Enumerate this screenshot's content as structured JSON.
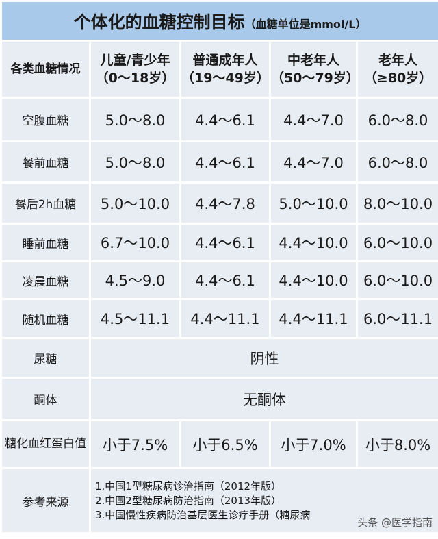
{
  "title": {
    "main": "个体化的血糖控制目标",
    "sub": "（血糖单位是mmol/L）"
  },
  "header": {
    "first": "各类血糖情况",
    "columns": [
      {
        "name": "儿童/青少年",
        "age": "（0～18岁）"
      },
      {
        "name": "普通成年人",
        "age": "（19～49岁）"
      },
      {
        "name": "中老年人",
        "age": "（50～79岁）"
      },
      {
        "name": "老年人",
        "age": "（≥80岁）"
      }
    ]
  },
  "rows": [
    {
      "label": "空腹血糖",
      "values": [
        "5.0～8.0",
        "4.4～6.1",
        "4.4～7.0",
        "6.0～8.0"
      ]
    },
    {
      "label": "餐前血糖",
      "values": [
        "5.0～8.0",
        "4.4～6.1",
        "4.4～7.0",
        "6.0～8.0"
      ]
    },
    {
      "label": "餐后2h血糖",
      "values": [
        "5.0～10.0",
        "4.4～7.8",
        "5.0～10.0",
        "8.0～10.0"
      ]
    },
    {
      "label": "睡前血糖",
      "values": [
        "6.7～10.0",
        "4.4～6.1",
        "4.4～10.0",
        "6.0～10.0"
      ]
    },
    {
      "label": "凌晨血糖",
      "values": [
        "4.5～9.0",
        "4.4～6.1",
        "4.4～10.0",
        "6.0～10.0"
      ]
    },
    {
      "label": "随机血糖",
      "values": [
        "4.5～11.1",
        "4.4～11.1",
        "4.4～11.1",
        "6.0～11.1"
      ]
    }
  ],
  "urine": {
    "label": "尿糖",
    "value": "阴性"
  },
  "ketone": {
    "label": "酮体",
    "value": "无酮体"
  },
  "hba1c": {
    "label": "糖化血红蛋白值",
    "values": [
      "小于7.5%",
      "小于6.5%",
      "小于7.0%",
      "小于8.0%"
    ]
  },
  "sources": {
    "label": "参考来源",
    "items": [
      "1.中国1型糖尿病诊治指南（2012年版）",
      "2.中国2型糖尿病防治指南（2013年版）",
      "3.中国慢性疾病防治基层医生诊疗手册（糖尿病"
    ]
  },
  "watermark": "头条 @医学指南",
  "colors": {
    "title_bg": "#a9c9ea",
    "cell_bg": "#e8edf4"
  }
}
